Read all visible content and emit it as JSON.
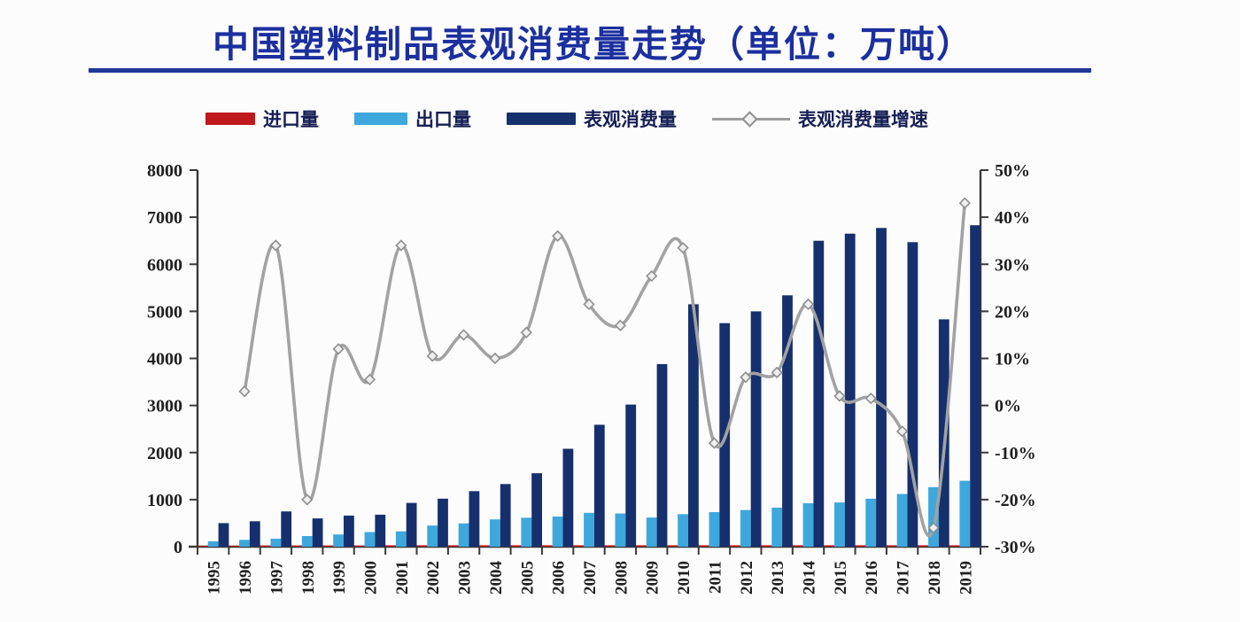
{
  "title": "中国塑料制品表观消费量走势（单位：万吨）",
  "colors": {
    "title_text": "#1b2f9e",
    "title_rule": "#1e3799",
    "import_red": "#c0181c",
    "export_blue": "#3ea8dc",
    "consumption_navy": "#16306e",
    "growth_gray": "#a2a2a2",
    "marker_fill": "#efefef",
    "marker_stroke": "#8f8f8f",
    "axis_line": "#3a3a3a",
    "axis_text": "#1f1f1f"
  },
  "chart_data": {
    "type": "bar",
    "subtype": "clustered-bars-with-line",
    "title": "中国塑料制品表观消费量走势（单位：万吨）",
    "categories": [
      "1995",
      "1996",
      "1997",
      "1998",
      "1999",
      "2000",
      "2001",
      "2002",
      "2003",
      "2004",
      "2005",
      "2006",
      "2007",
      "2008",
      "2009",
      "2010",
      "2011",
      "2012",
      "2013",
      "2014",
      "2015",
      "2016",
      "2017",
      "2018",
      "2019"
    ],
    "series": [
      {
        "name": "进口量",
        "type": "bar",
        "axis": "left",
        "color": "#c0181c",
        "values": [
          20,
          20,
          25,
          25,
          25,
          25,
          30,
          30,
          30,
          30,
          30,
          30,
          30,
          30,
          30,
          30,
          30,
          30,
          30,
          30,
          30,
          30,
          30,
          30,
          30
        ]
      },
      {
        "name": "出口量",
        "type": "bar",
        "axis": "left",
        "color": "#3ea8dc",
        "values": [
          115,
          145,
          170,
          225,
          260,
          310,
          325,
          450,
          495,
          580,
          615,
          640,
          720,
          705,
          620,
          690,
          735,
          780,
          830,
          925,
          940,
          1020,
          1120,
          1265,
          1400
        ]
      },
      {
        "name": "表观消费量",
        "type": "bar",
        "axis": "left",
        "color": "#16306e",
        "values": [
          500,
          540,
          750,
          600,
          660,
          680,
          930,
          1020,
          1180,
          1330,
          1560,
          2080,
          2590,
          3020,
          3880,
          5150,
          4750,
          5000,
          5340,
          6500,
          6650,
          6770,
          6470,
          4830,
          6830
        ]
      },
      {
        "name": "表观消费量增速",
        "type": "line",
        "axis": "right",
        "color": "#a2a2a2",
        "marker": "open-diamond",
        "values": [
          null,
          3,
          34,
          -20,
          12,
          5.5,
          34,
          10.5,
          15,
          10,
          15.5,
          36,
          21.5,
          17,
          27.5,
          33.5,
          -8,
          6,
          7,
          21.5,
          2,
          1.5,
          -5.5,
          -26,
          43
        ]
      }
    ],
    "left_axis": {
      "min": 0,
      "max": 8000,
      "step": 1000,
      "tick_labels": [
        "0",
        "1000",
        "2000",
        "3000",
        "4000",
        "5000",
        "6000",
        "7000",
        "8000"
      ]
    },
    "right_axis": {
      "min": -30,
      "max": 50,
      "step": 10,
      "format": "percent",
      "tick_labels": [
        "-30%",
        "-20%",
        "-10%",
        "0%",
        "10%",
        "20%",
        "30%",
        "40%",
        "50%"
      ]
    },
    "x_axis": {
      "label_rotation": -90
    },
    "grid": false,
    "legend_position": "top"
  }
}
